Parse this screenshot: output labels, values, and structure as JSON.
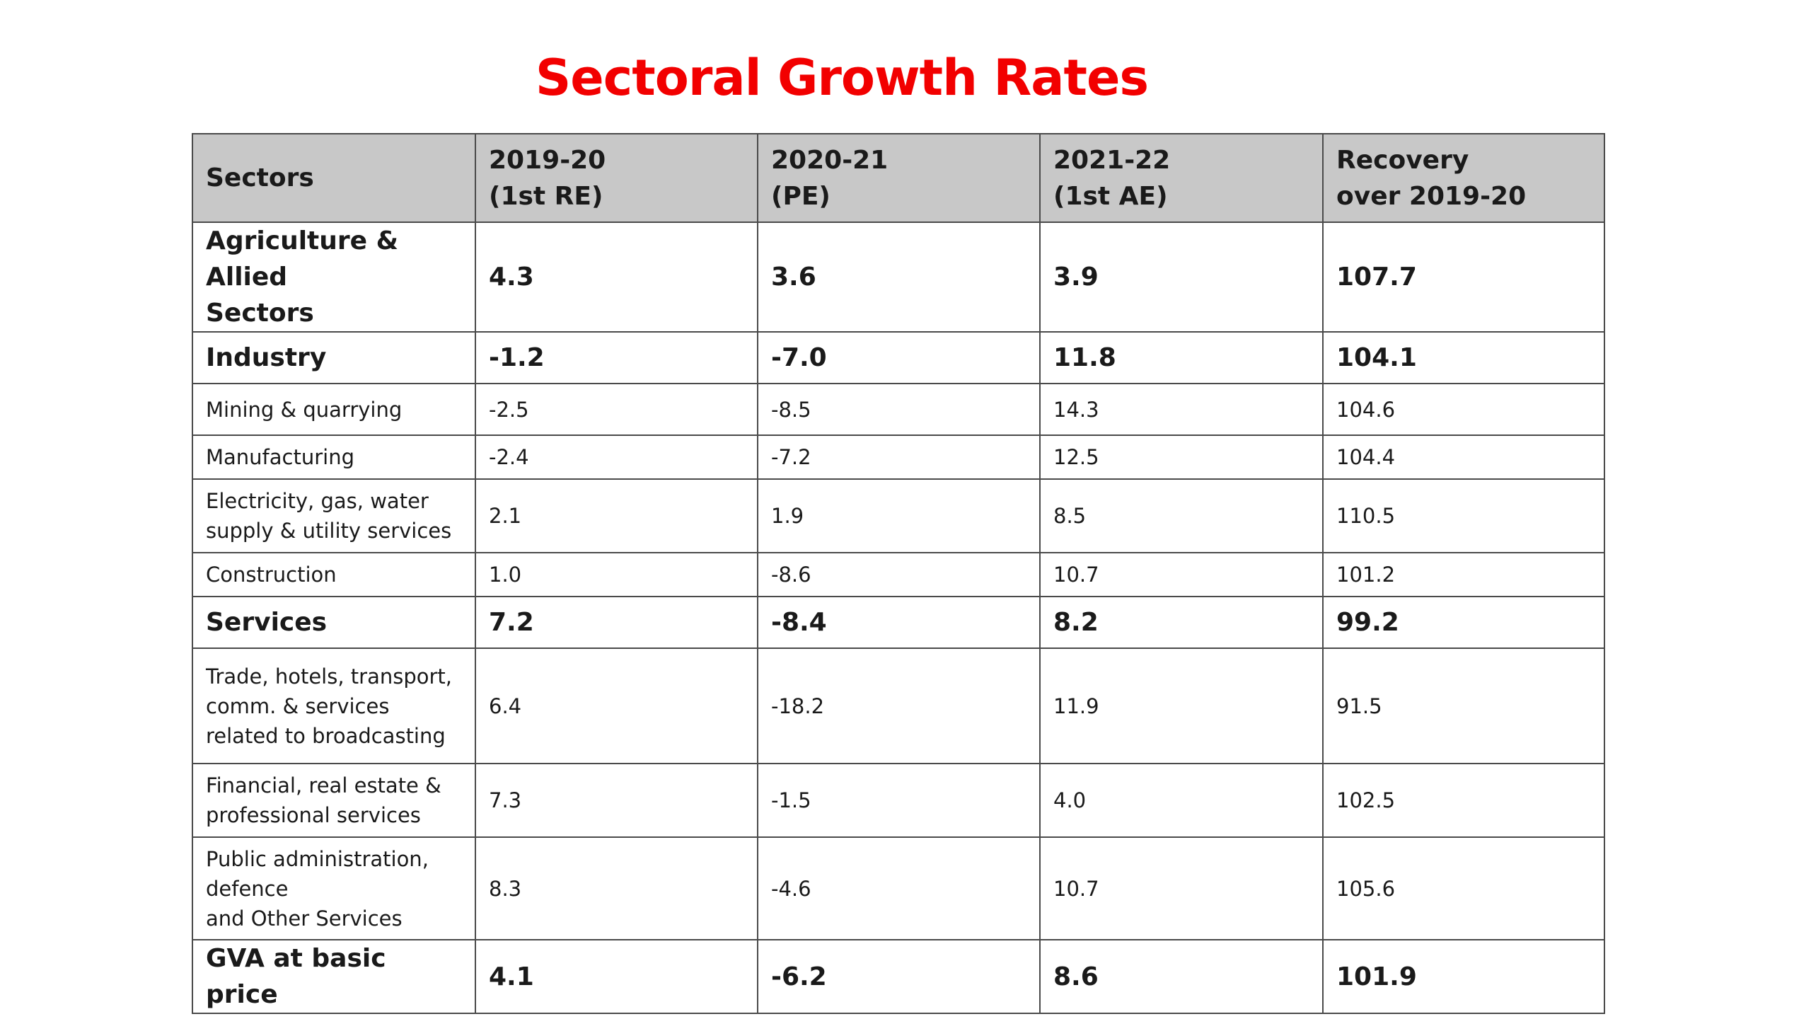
{
  "title": "Sectoral Growth Rates",
  "table": {
    "headers": [
      "Sectors",
      "2019-20\n(1st RE)",
      "2020-21\n(PE)",
      "2021-22\n(1st AE)",
      "Recovery\nover 2019-20"
    ],
    "rows": [
      {
        "sector": "Agriculture & Allied\nSectors",
        "y2019_20": "4.3",
        "y2020_21": "3.6",
        "y2021_22": "3.9",
        "recovery": "107.7"
      },
      {
        "sector": "Industry",
        "y2019_20": "-1.2",
        "y2020_21": "-7.0",
        "y2021_22": "11.8",
        "recovery": "104.1"
      },
      {
        "sector": "Mining & quarrying",
        "y2019_20": "-2.5",
        "y2020_21": "-8.5",
        "y2021_22": "14.3",
        "recovery": "104.6"
      },
      {
        "sector": "Manufacturing",
        "y2019_20": "-2.4",
        "y2020_21": "-7.2",
        "y2021_22": "12.5",
        "recovery": "104.4"
      },
      {
        "sector": "Electricity, gas, water\nsupply & utility services",
        "y2019_20": "2.1",
        "y2020_21": "1.9",
        "y2021_22": "8.5",
        "recovery": "110.5"
      },
      {
        "sector": "Construction",
        "y2019_20": "1.0",
        "y2020_21": "-8.6",
        "y2021_22": "10.7",
        "recovery": "101.2"
      },
      {
        "sector": "Services",
        "y2019_20": "7.2",
        "y2020_21": "-8.4",
        "y2021_22": "8.2",
        "recovery": "99.2"
      },
      {
        "sector": "Trade, hotels, transport,\ncomm. & services\nrelated to broadcasting",
        "y2019_20": "6.4",
        "y2020_21": "-18.2",
        "y2021_22": "11.9",
        "recovery": "91.5"
      },
      {
        "sector": "Financial, real estate &\nprofessional services",
        "y2019_20": "7.3",
        "y2020_21": "-1.5",
        "y2021_22": "4.0",
        "recovery": "102.5"
      },
      {
        "sector": "Public administration,\ndefence\nand Other Services",
        "y2019_20": "8.3",
        "y2020_21": "-4.6",
        "y2021_22": "10.7",
        "recovery": "105.6"
      },
      {
        "sector": "GVA at basic price",
        "y2019_20": "4.1",
        "y2020_21": "-6.2",
        "y2021_22": "8.6",
        "recovery": "101.9"
      }
    ]
  }
}
